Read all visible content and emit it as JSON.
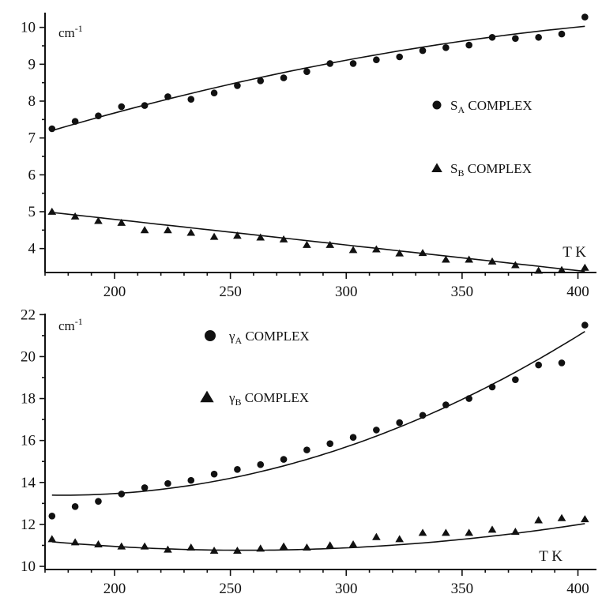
{
  "chart_data": [
    {
      "type": "scatter",
      "unit_label": "cm",
      "unit_superscript": "-1",
      "corner_label": "T K",
      "xlim": [
        170,
        408
      ],
      "ylim": [
        3.35,
        10.4
      ],
      "x_ticks": [
        200,
        250,
        300,
        350,
        400
      ],
      "y_ticks": [
        4,
        5,
        6,
        7,
        8,
        9,
        10
      ],
      "grid": false,
      "legend_position": "right",
      "series": [
        {
          "legend_main": "S",
          "legend_sub": "A",
          "legend_suffix": " COMPLEX",
          "marker": "circle",
          "x": [
            173,
            183,
            193,
            203,
            213,
            223,
            233,
            243,
            253,
            263,
            273,
            283,
            293,
            303,
            313,
            323,
            333,
            343,
            353,
            363,
            373,
            383,
            393,
            403
          ],
          "y": [
            7.25,
            7.45,
            7.6,
            7.85,
            7.88,
            8.12,
            8.05,
            8.22,
            8.42,
            8.55,
            8.63,
            8.8,
            9.02,
            9.02,
            9.12,
            9.2,
            9.37,
            9.45,
            9.52,
            9.73,
            9.7,
            9.73,
            9.82,
            10.28
          ],
          "fit_x": [
            173,
            403
          ],
          "fit_y": [
            7.2,
            10.03
          ],
          "fit_curvature": 0.35
        },
        {
          "legend_main": "S",
          "legend_sub": "B",
          "legend_suffix": " COMPLEX",
          "marker": "triangle",
          "x": [
            173,
            183,
            193,
            203,
            213,
            223,
            233,
            243,
            253,
            263,
            273,
            283,
            293,
            303,
            313,
            323,
            333,
            343,
            353,
            363,
            373,
            383,
            393,
            403
          ],
          "y": [
            5.0,
            4.87,
            4.75,
            4.7,
            4.5,
            4.5,
            4.43,
            4.32,
            4.35,
            4.3,
            4.25,
            4.1,
            4.1,
            3.96,
            3.98,
            3.87,
            3.88,
            3.7,
            3.7,
            3.65,
            3.55,
            3.4,
            3.42,
            3.48
          ],
          "fit_x": [
            173,
            403
          ],
          "fit_y": [
            4.98,
            3.38
          ],
          "fit_curvature": 0.0
        }
      ]
    },
    {
      "type": "scatter",
      "unit_label": "cm",
      "unit_superscript": "-1",
      "corner_label": "T K",
      "xlim": [
        170,
        408
      ],
      "ylim": [
        9.85,
        22.05
      ],
      "x_ticks": [
        200,
        250,
        300,
        350,
        400
      ],
      "y_ticks": [
        10,
        12,
        14,
        16,
        18,
        20,
        22
      ],
      "grid": false,
      "legend_position": "top-left",
      "series": [
        {
          "legend_main": "γ",
          "legend_sub": "A",
          "legend_suffix": " COMPLEX",
          "marker": "circle",
          "x": [
            173,
            183,
            193,
            203,
            213,
            223,
            233,
            243,
            253,
            263,
            273,
            283,
            293,
            303,
            313,
            323,
            333,
            343,
            353,
            363,
            373,
            383,
            393,
            403
          ],
          "y": [
            12.4,
            12.85,
            13.1,
            13.45,
            13.75,
            13.95,
            14.1,
            14.4,
            14.62,
            14.85,
            15.1,
            15.55,
            15.85,
            16.15,
            16.5,
            16.85,
            17.2,
            17.7,
            18.0,
            18.55,
            18.9,
            19.6,
            19.7,
            21.5
          ],
          "fit": "poly2",
          "fit_coefficients": [
            18.23,
            -0.0545,
            0.0001535
          ],
          "fit_range": [
            173,
            403
          ]
        },
        {
          "legend_main": "γ",
          "legend_sub": "B",
          "legend_suffix": " COMPLEX",
          "marker": "triangle",
          "x": [
            173,
            183,
            193,
            203,
            213,
            223,
            233,
            243,
            253,
            263,
            273,
            283,
            293,
            303,
            313,
            323,
            333,
            343,
            353,
            363,
            373,
            383,
            393,
            403
          ],
          "y": [
            11.3,
            11.15,
            11.05,
            10.95,
            10.95,
            10.8,
            10.9,
            10.75,
            10.75,
            10.85,
            10.95,
            10.9,
            11.0,
            11.05,
            11.4,
            11.3,
            11.6,
            11.6,
            11.6,
            11.75,
            11.65,
            12.2,
            12.3,
            12.25
          ],
          "fit": "poly2",
          "fit_coefficients": [
            14.62,
            -0.0301,
            5.88e-05
          ],
          "fit_range": [
            173,
            403
          ]
        }
      ]
    }
  ]
}
